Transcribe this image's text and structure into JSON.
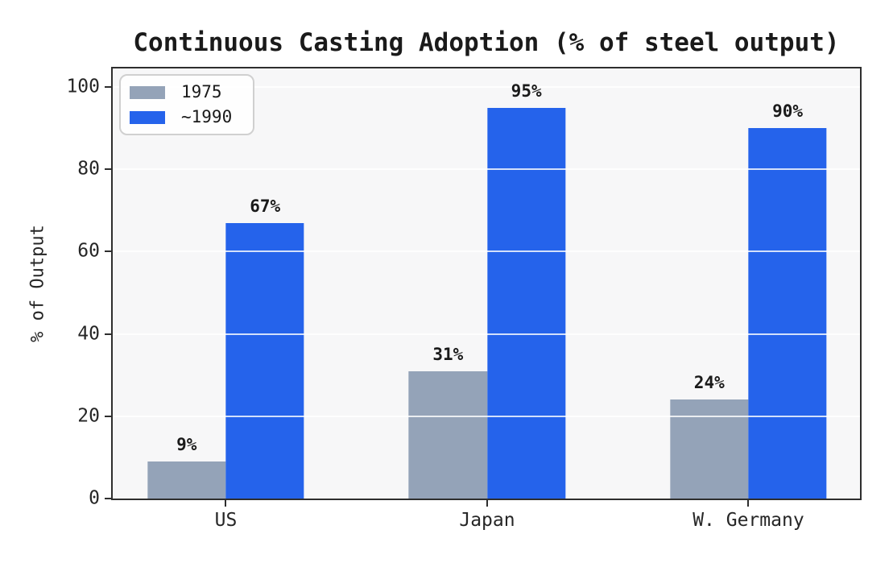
{
  "chart_data": {
    "type": "bar",
    "title": "Continuous Casting Adoption (% of steel output)",
    "ylabel": "% of Output",
    "xlabel": "",
    "categories": [
      "US",
      "Japan",
      "W. Germany"
    ],
    "series": [
      {
        "name": "1975",
        "color": "#94a3b8",
        "values": [
          9,
          31,
          24
        ],
        "labels": [
          "9%",
          "31%",
          "24%"
        ]
      },
      {
        "name": "~1990",
        "color": "#2563eb",
        "values": [
          67,
          95,
          90
        ],
        "labels": [
          "67%",
          "95%",
          "90%"
        ]
      }
    ],
    "yticks": [
      0,
      20,
      40,
      60,
      80,
      100
    ],
    "ylim": [
      0,
      104.5
    ],
    "xlim": [
      -0.433,
      2.427
    ],
    "bar_width": 0.3,
    "grid": true,
    "legend_position": "upper-left",
    "colors": {
      "plot_background": "#f7f7f8",
      "spine": "#2e2e2e",
      "gridline": "rgba(255,255,255,0.8)",
      "text": "#1a1a1a"
    }
  }
}
